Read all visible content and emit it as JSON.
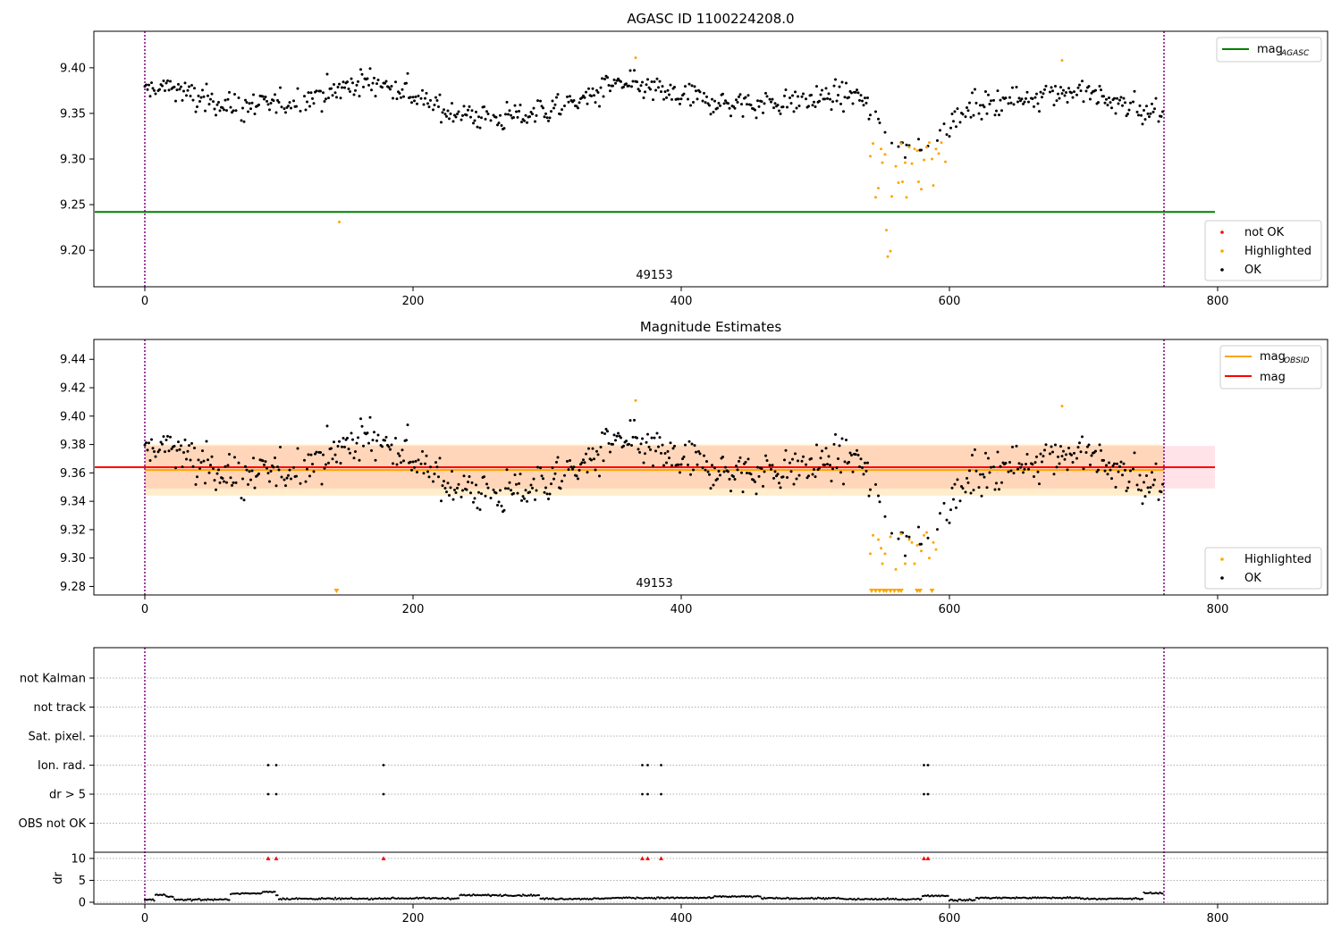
{
  "chart_data": [
    {
      "type": "scatter",
      "title": "AGASC ID 1100224208.0",
      "obsid_label": "49153",
      "xlim": [
        -38,
        882
      ],
      "ylim": [
        9.16,
        9.44
      ],
      "xticks": [
        0,
        200,
        400,
        600,
        800
      ],
      "xtick_labels": [
        "0",
        "200",
        "400",
        "600",
        "800"
      ],
      "yticks": [
        9.2,
        9.25,
        9.3,
        9.35,
        9.4
      ],
      "ytick_labels": [
        "9.20",
        "9.25",
        "9.30",
        "9.35",
        "9.40"
      ],
      "vlines": [
        0,
        760
      ],
      "hline": {
        "name": "mag",
        "subscript": "AGASC",
        "y": 9.242,
        "x_range": [
          -38,
          798
        ],
        "color": "#008000"
      },
      "legend_lines": [
        {
          "label": "mag",
          "sub": "AGASC",
          "color": "#008000"
        }
      ],
      "legend_points": [
        {
          "label": "not OK",
          "color": "#ff0000"
        },
        {
          "label": "Highlighted",
          "color": "#ffa500"
        },
        {
          "label": "OK",
          "color": "#000000"
        }
      ],
      "highlighted_points": [
        [
          145,
          9.231
        ],
        [
          366,
          9.411
        ],
        [
          684,
          9.408
        ],
        [
          541,
          9.303
        ],
        [
          543,
          9.317
        ],
        [
          545,
          9.258
        ],
        [
          547,
          9.268
        ],
        [
          549,
          9.311
        ],
        [
          550,
          9.296
        ],
        [
          552,
          9.305
        ],
        [
          553,
          9.222
        ],
        [
          554,
          9.193
        ],
        [
          556,
          9.199
        ],
        [
          557,
          9.259
        ],
        [
          560,
          9.292
        ],
        [
          562,
          9.274
        ],
        [
          564,
          9.317
        ],
        [
          565,
          9.275
        ],
        [
          567,
          9.296
        ],
        [
          568,
          9.258
        ],
        [
          570,
          9.313
        ],
        [
          572,
          9.295
        ],
        [
          574,
          9.311
        ],
        [
          576,
          9.309
        ],
        [
          577,
          9.275
        ],
        [
          579,
          9.267
        ],
        [
          581,
          9.299
        ],
        [
          583,
          9.313
        ],
        [
          585,
          9.318
        ],
        [
          587,
          9.3
        ],
        [
          588,
          9.271
        ],
        [
          590,
          9.311
        ],
        [
          592,
          9.306
        ],
        [
          594,
          9.318
        ],
        [
          597,
          9.297
        ]
      ],
      "ok_color": "#000000",
      "highlight_color": "#ffa500"
    },
    {
      "type": "scatter",
      "title": "Magnitude Estimates",
      "obsid_label": "49153",
      "xlim": [
        -38,
        882
      ],
      "ylim": [
        9.274,
        9.454
      ],
      "xticks": [
        0,
        200,
        400,
        600,
        800
      ],
      "xtick_labels": [
        "0",
        "200",
        "400",
        "600",
        "800"
      ],
      "yticks": [
        9.28,
        9.3,
        9.32,
        9.34,
        9.36,
        9.38,
        9.4,
        9.42,
        9.44
      ],
      "ytick_labels": [
        "9.28",
        "9.30",
        "9.32",
        "9.34",
        "9.36",
        "9.38",
        "9.40",
        "9.42",
        "9.44"
      ],
      "vlines": [
        0,
        760
      ],
      "band_mag": {
        "center": 9.364,
        "half_width": 0.015,
        "x_range": [
          0,
          798
        ],
        "color": "#ffc0cb"
      },
      "band_obsid": {
        "center": 9.362,
        "half_width": 0.018,
        "x_range": [
          0,
          760
        ],
        "color": "#ffa500"
      },
      "line_obsid": {
        "label": "mag",
        "sub": "OBSID",
        "y": 9.362,
        "color": "#ffa500"
      },
      "line_mag": {
        "label": "mag",
        "y": 9.364,
        "color": "#ff0000"
      },
      "legend_lines": [
        {
          "label": "mag",
          "sub": "OBSID",
          "color": "#ffa500"
        },
        {
          "label": "mag",
          "sub": "",
          "color": "#ff0000"
        }
      ],
      "legend_points": [
        {
          "label": "Highlighted",
          "color": "#ffa500"
        },
        {
          "label": "OK",
          "color": "#000000"
        }
      ],
      "clipped_markers_x": [
        143,
        542,
        545,
        548,
        551,
        553,
        556,
        559,
        562,
        564,
        576,
        578,
        587
      ],
      "highlighted_points": [
        [
          366,
          9.411
        ],
        [
          684,
          9.407
        ],
        [
          541,
          9.303
        ],
        [
          543,
          9.316
        ],
        [
          547,
          9.313
        ],
        [
          549,
          9.307
        ],
        [
          550,
          9.296
        ],
        [
          552,
          9.303
        ],
        [
          556,
          9.315
        ],
        [
          560,
          9.292
        ],
        [
          564,
          9.317
        ],
        [
          567,
          9.296
        ],
        [
          570,
          9.313
        ],
        [
          572,
          9.311
        ],
        [
          574,
          9.296
        ],
        [
          576,
          9.309
        ],
        [
          579,
          9.305
        ],
        [
          581,
          9.316
        ],
        [
          583,
          9.318
        ],
        [
          585,
          9.3
        ],
        [
          588,
          9.311
        ],
        [
          590,
          9.306
        ]
      ]
    },
    {
      "type": "scatter",
      "title": "",
      "xlim": [
        -38,
        882
      ],
      "xticks": [
        0,
        200,
        400,
        600,
        800
      ],
      "xtick_labels": [
        "0",
        "200",
        "400",
        "600",
        "800"
      ],
      "vlines": [
        0,
        760
      ],
      "flag_categories": [
        "OBS not OK",
        "dr > 5",
        "Ion. rad.",
        "Sat. pixel.",
        "not track",
        "not Kalman"
      ],
      "flag_points": [
        {
          "flag": "Ion. rad.",
          "x": [
            92,
            98,
            178,
            371,
            375,
            385,
            581,
            584
          ]
        },
        {
          "flag": "dr > 5",
          "x": [
            92,
            98,
            178,
            371,
            375,
            385,
            581,
            584
          ]
        }
      ],
      "dr": {
        "ylabel": "dr",
        "ylim": [
          0,
          11
        ],
        "yticks": [
          0,
          5,
          10
        ],
        "ytick_labels": [
          "0",
          "5",
          "10"
        ],
        "red_markers_x": [
          92,
          98,
          178,
          371,
          375,
          385,
          581,
          584
        ],
        "red_marker_y": 10,
        "segments": [
          [
            0,
            8,
            0.6
          ],
          [
            8,
            16,
            1.7
          ],
          [
            16,
            22,
            1.3
          ],
          [
            22,
            64,
            0.6
          ],
          [
            64,
            88,
            2.0
          ],
          [
            88,
            98,
            2.4
          ],
          [
            98,
            100,
            1.6
          ],
          [
            100,
            175,
            0.8
          ],
          [
            175,
            235,
            0.9
          ],
          [
            235,
            295,
            1.6
          ],
          [
            295,
            345,
            0.8
          ],
          [
            345,
            425,
            1.0
          ],
          [
            425,
            460,
            1.3
          ],
          [
            460,
            520,
            0.9
          ],
          [
            520,
            580,
            0.7
          ],
          [
            580,
            600,
            1.5
          ],
          [
            600,
            620,
            0.5
          ],
          [
            620,
            700,
            1.0
          ],
          [
            700,
            745,
            0.8
          ],
          [
            745,
            760,
            2.1
          ]
        ]
      }
    }
  ]
}
